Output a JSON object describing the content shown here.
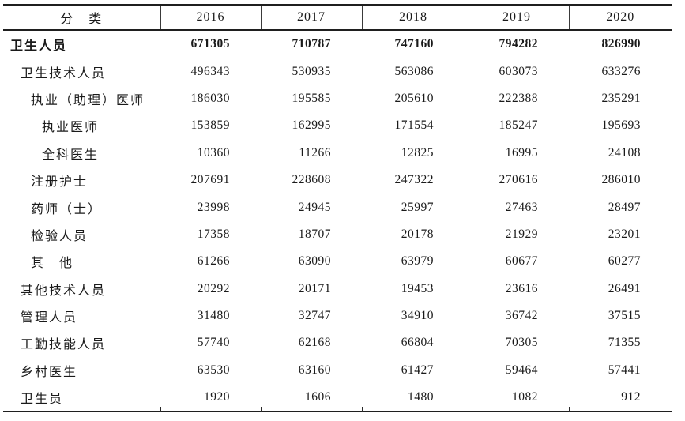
{
  "table": {
    "header": {
      "category": "分　类",
      "years": [
        "2016",
        "2017",
        "2018",
        "2019",
        "2020"
      ]
    },
    "rows": [
      {
        "label": "卫生人员",
        "indent": 0,
        "bold": true,
        "values": [
          "671305",
          "710787",
          "747160",
          "794282",
          "826990"
        ]
      },
      {
        "label": "卫生技术人员",
        "indent": 1,
        "bold": false,
        "values": [
          "496343",
          "530935",
          "563086",
          "603073",
          "633276"
        ]
      },
      {
        "label": "执业（助理）医师",
        "indent": 2,
        "bold": false,
        "values": [
          "186030",
          "195585",
          "205610",
          "222388",
          "235291"
        ]
      },
      {
        "label": "执业医师",
        "indent": 3,
        "bold": false,
        "values": [
          "153859",
          "162995",
          "171554",
          "185247",
          "195693"
        ]
      },
      {
        "label": "全科医生",
        "indent": 3,
        "bold": false,
        "values": [
          "10360",
          "11266",
          "12825",
          "16995",
          "24108"
        ]
      },
      {
        "label": "注册护士",
        "indent": 2,
        "bold": false,
        "values": [
          "207691",
          "228608",
          "247322",
          "270616",
          "286010"
        ]
      },
      {
        "label": "药师（士）",
        "indent": 2,
        "bold": false,
        "values": [
          "23998",
          "24945",
          "25997",
          "27463",
          "28497"
        ]
      },
      {
        "label": "检验人员",
        "indent": 2,
        "bold": false,
        "values": [
          "17358",
          "18707",
          "20178",
          "21929",
          "23201"
        ]
      },
      {
        "label": "其　他",
        "indent": 2,
        "bold": false,
        "values": [
          "61266",
          "63090",
          "63979",
          "60677",
          "60277"
        ]
      },
      {
        "label": "其他技术人员",
        "indent": 1,
        "bold": false,
        "values": [
          "20292",
          "20171",
          "19453",
          "23616",
          "26491"
        ]
      },
      {
        "label": "管理人员",
        "indent": 1,
        "bold": false,
        "values": [
          "31480",
          "32747",
          "34910",
          "36742",
          "37515"
        ]
      },
      {
        "label": "工勤技能人员",
        "indent": 1,
        "bold": false,
        "values": [
          "57740",
          "62168",
          "66804",
          "70305",
          "71355"
        ]
      },
      {
        "label": "乡村医生",
        "indent": 1,
        "bold": false,
        "values": [
          "63530",
          "63160",
          "61427",
          "59464",
          "57441"
        ]
      },
      {
        "label": "卫生员",
        "indent": 1,
        "bold": false,
        "values": [
          "1920",
          "1606",
          "1480",
          "1082",
          "912"
        ]
      }
    ]
  },
  "chart_data": {
    "type": "table",
    "title": "",
    "categories": [
      "2016",
      "2017",
      "2018",
      "2019",
      "2020"
    ],
    "series": [
      {
        "name": "卫生人员",
        "values": [
          671305,
          710787,
          747160,
          794282,
          826990
        ]
      },
      {
        "name": "卫生技术人员",
        "values": [
          496343,
          530935,
          563086,
          603073,
          633276
        ]
      },
      {
        "name": "执业（助理）医师",
        "values": [
          186030,
          195585,
          205610,
          222388,
          235291
        ]
      },
      {
        "name": "执业医师",
        "values": [
          153859,
          162995,
          171554,
          185247,
          195693
        ]
      },
      {
        "name": "全科医生",
        "values": [
          10360,
          11266,
          12825,
          16995,
          24108
        ]
      },
      {
        "name": "注册护士",
        "values": [
          207691,
          228608,
          247322,
          270616,
          286010
        ]
      },
      {
        "name": "药师（士）",
        "values": [
          23998,
          24945,
          25997,
          27463,
          28497
        ]
      },
      {
        "name": "检验人员",
        "values": [
          17358,
          18707,
          20178,
          21929,
          23201
        ]
      },
      {
        "name": "其他",
        "values": [
          61266,
          63090,
          63979,
          60677,
          60277
        ]
      },
      {
        "name": "其他技术人员",
        "values": [
          20292,
          20171,
          19453,
          23616,
          26491
        ]
      },
      {
        "name": "管理人员",
        "values": [
          31480,
          32747,
          34910,
          36742,
          37515
        ]
      },
      {
        "name": "工勤技能人员",
        "values": [
          57740,
          62168,
          66804,
          70305,
          71355
        ]
      },
      {
        "name": "乡村医生",
        "values": [
          63530,
          63160,
          61427,
          59464,
          57441
        ]
      },
      {
        "name": "卫生员",
        "values": [
          1920,
          1606,
          1480,
          1082,
          912
        ]
      }
    ]
  }
}
